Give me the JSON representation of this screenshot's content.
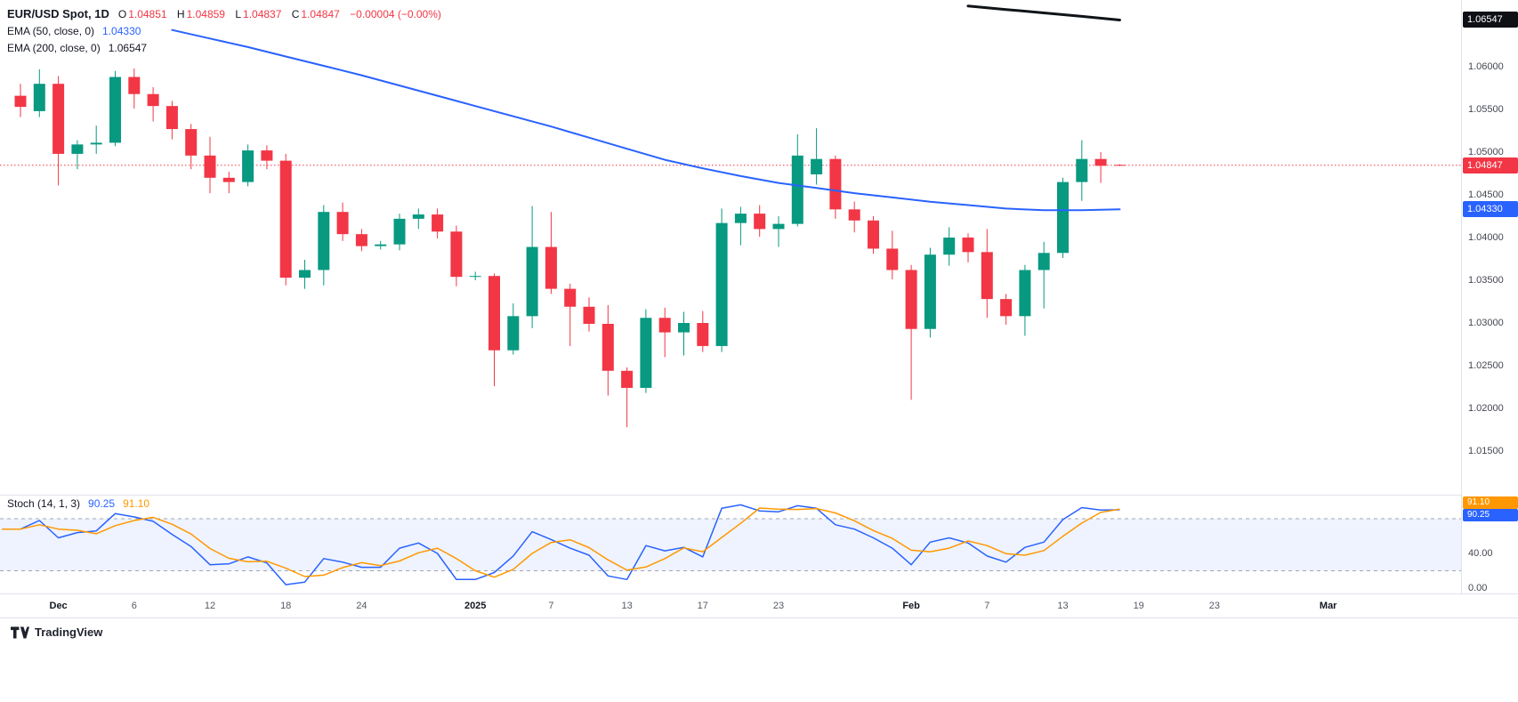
{
  "legend": {
    "title": "EUR/USD Spot, 1D",
    "ohlc": {
      "o_label": "O",
      "o_value": "1.04851",
      "h_label": "H",
      "h_value": "1.04859",
      "l_label": "L",
      "l_value": "1.04837",
      "c_label": "C",
      "c_value": "1.04847",
      "change": "−0.00004 (−0.00%)"
    },
    "ema50_label": "EMA (50, close, 0)",
    "ema50_value": "1.04330",
    "ema200_label": "EMA (200, close, 0)",
    "ema200_value": "1.06547"
  },
  "stoch_legend": {
    "label": "Stoch (14, 1, 3)",
    "k_value": "90.25",
    "d_value": "91.10"
  },
  "footer": {
    "brand": "TradingView"
  },
  "colors": {
    "up": "#089981",
    "down": "#f23645",
    "ema50": "#2962ff",
    "ema200": "#101418",
    "price_line": "#f23645",
    "stoch_k": "#2962ff",
    "stoch_d": "#ff9800",
    "band_fill": "rgba(41,98,255,0.08)",
    "band_line": "#787b86"
  },
  "price_axis": {
    "ticks": [
      {
        "text": "1.06000",
        "p": 1.06
      },
      {
        "text": "1.05500",
        "p": 1.055
      },
      {
        "text": "1.05000",
        "p": 1.05
      },
      {
        "text": "1.04500",
        "p": 1.045
      },
      {
        "text": "1.04000",
        "p": 1.04
      },
      {
        "text": "1.03500",
        "p": 1.035
      },
      {
        "text": "1.03000",
        "p": 1.03
      },
      {
        "text": "1.02500",
        "p": 1.025
      },
      {
        "text": "1.02000",
        "p": 1.02
      },
      {
        "text": "1.01500",
        "p": 1.015
      }
    ],
    "badges": [
      {
        "text": "1.06547",
        "p": 1.06547,
        "bg": "#0f1016"
      },
      {
        "text": "1.04847",
        "p": 1.04847,
        "bg": "#f23645"
      },
      {
        "text": "1.04330",
        "p": 1.0433,
        "bg": "#2962ff"
      }
    ]
  },
  "stoch_axis": {
    "ticks": [
      {
        "text": "80.00",
        "v": 80
      },
      {
        "text": "40.00",
        "v": 40
      },
      {
        "text": "0.00",
        "v": 0
      }
    ],
    "badges": [
      {
        "text": "91.10",
        "bg": "#ff9800"
      },
      {
        "text": "90.25",
        "bg": "#2962ff"
      }
    ]
  },
  "chart_data": {
    "type": "candlestick",
    "symbol": "EUR/USD Spot",
    "timeframe": "1D",
    "title": "EUR/USD Spot, 1D with EMA(50), EMA(200) and Stoch(14,1,3)",
    "ylim": [
      1.0125,
      1.0665
    ],
    "price_line": 1.04847,
    "current_ohlc": {
      "o": 1.04851,
      "h": 1.04859,
      "l": 1.04837,
      "c": 1.04847,
      "change": -4e-05,
      "change_pct": "-0.00%"
    },
    "ema50_last": 1.0433,
    "ema200_last": 1.06547,
    "candles": [
      [
        1.0566,
        1.058,
        1.0541,
        1.0553
      ],
      [
        1.0548,
        1.0597,
        1.0541,
        1.058
      ],
      [
        1.058,
        1.0589,
        1.0461,
        1.0498
      ],
      [
        1.0498,
        1.0514,
        1.048,
        1.0509
      ],
      [
        1.0509,
        1.0531,
        1.0498,
        1.0511
      ],
      [
        1.0511,
        1.0595,
        1.0507,
        1.0588
      ],
      [
        1.0588,
        1.0598,
        1.0551,
        1.0568
      ],
      [
        1.0568,
        1.0576,
        1.0536,
        1.0554
      ],
      [
        1.0554,
        1.056,
        1.0515,
        1.0527
      ],
      [
        1.0527,
        1.0533,
        1.048,
        1.0496
      ],
      [
        1.0496,
        1.0518,
        1.0452,
        1.047
      ],
      [
        1.047,
        1.0477,
        1.0452,
        1.0465
      ],
      [
        1.0465,
        1.0509,
        1.046,
        1.0502
      ],
      [
        1.0502,
        1.0508,
        1.048,
        1.049
      ],
      [
        1.049,
        1.0498,
        1.0344,
        1.0353
      ],
      [
        1.0353,
        1.0374,
        1.034,
        1.0362
      ],
      [
        1.0362,
        1.0438,
        1.0344,
        1.043
      ],
      [
        1.043,
        1.0441,
        1.0396,
        1.0404
      ],
      [
        1.0404,
        1.041,
        1.0384,
        1.039
      ],
      [
        1.039,
        1.0396,
        1.0386,
        1.0392
      ],
      [
        1.0392,
        1.0428,
        1.0385,
        1.0422
      ],
      [
        1.0422,
        1.0434,
        1.041,
        1.0427
      ],
      [
        1.0427,
        1.0434,
        1.0399,
        1.0407
      ],
      [
        1.0407,
        1.0414,
        1.0343,
        1.0354
      ],
      [
        1.0354,
        1.036,
        1.035,
        1.0355
      ],
      [
        1.0355,
        1.0358,
        1.0226,
        1.0268
      ],
      [
        1.0268,
        1.0323,
        1.0263,
        1.0308
      ],
      [
        1.0308,
        1.0437,
        1.0294,
        1.0389
      ],
      [
        1.0389,
        1.043,
        1.0334,
        1.034
      ],
      [
        1.034,
        1.0346,
        1.0273,
        1.0319
      ],
      [
        1.0319,
        1.033,
        1.029,
        1.0299
      ],
      [
        1.0299,
        1.0321,
        1.0215,
        1.0244
      ],
      [
        1.0244,
        1.0248,
        1.0178,
        1.0224
      ],
      [
        1.0224,
        1.0316,
        1.0218,
        1.0306
      ],
      [
        1.0306,
        1.0318,
        1.026,
        1.0289
      ],
      [
        1.0289,
        1.0313,
        1.0262,
        1.03
      ],
      [
        1.03,
        1.0314,
        1.0266,
        1.0273
      ],
      [
        1.0273,
        1.0434,
        1.0266,
        1.0417
      ],
      [
        1.0417,
        1.0436,
        1.0391,
        1.0428
      ],
      [
        1.0428,
        1.0438,
        1.0401,
        1.041
      ],
      [
        1.041,
        1.0425,
        1.0389,
        1.0416
      ],
      [
        1.0416,
        1.0521,
        1.0413,
        1.0496
      ],
      [
        1.0474,
        1.0528,
        1.0462,
        1.0492
      ],
      [
        1.0492,
        1.0496,
        1.0422,
        1.0433
      ],
      [
        1.0433,
        1.0442,
        1.0406,
        1.042
      ],
      [
        1.042,
        1.0425,
        1.0381,
        1.0387
      ],
      [
        1.0387,
        1.0408,
        1.0351,
        1.0362
      ],
      [
        1.0362,
        1.0368,
        1.021,
        1.0293
      ],
      [
        1.0293,
        1.0388,
        1.0283,
        1.038
      ],
      [
        1.038,
        1.0412,
        1.0367,
        1.04
      ],
      [
        1.04,
        1.0405,
        1.0371,
        1.0383
      ],
      [
        1.0383,
        1.041,
        1.0306,
        1.0328
      ],
      [
        1.0328,
        1.0334,
        1.0298,
        1.0308
      ],
      [
        1.0308,
        1.0368,
        1.0285,
        1.0362
      ],
      [
        1.0362,
        1.0395,
        1.0317,
        1.0382
      ],
      [
        1.0382,
        1.047,
        1.0376,
        1.0465
      ],
      [
        1.0465,
        1.0514,
        1.0443,
        1.0492
      ],
      [
        1.0492,
        1.05,
        1.0464,
        1.0484
      ],
      [
        1.04851,
        1.04859,
        1.04837,
        1.04847
      ]
    ],
    "ema50_points": [
      [
        8,
        1.0643
      ],
      [
        10,
        1.0633
      ],
      [
        12,
        1.0623
      ],
      [
        14,
        1.0612
      ],
      [
        16,
        1.0601
      ],
      [
        18,
        1.059
      ],
      [
        20,
        1.0578
      ],
      [
        22,
        1.0566
      ],
      [
        24,
        1.0554
      ],
      [
        26,
        1.0542
      ],
      [
        28,
        1.053
      ],
      [
        30,
        1.0517
      ],
      [
        32,
        1.0504
      ],
      [
        34,
        1.0491
      ],
      [
        36,
        1.0481
      ],
      [
        38,
        1.0472
      ],
      [
        40,
        1.0464
      ],
      [
        42,
        1.0458
      ],
      [
        44,
        1.0452
      ],
      [
        46,
        1.0447
      ],
      [
        48,
        1.0442
      ],
      [
        50,
        1.0438
      ],
      [
        52,
        1.0434
      ],
      [
        54,
        1.0432
      ],
      [
        56,
        1.0432
      ],
      [
        58,
        1.0433
      ]
    ],
    "ema200_points": [
      [
        50,
        1.0671
      ],
      [
        52,
        1.0667
      ],
      [
        54,
        1.0663
      ],
      [
        56,
        1.0659
      ],
      [
        58,
        1.06547
      ]
    ],
    "stoch": {
      "upper": 80,
      "lower": 20,
      "last_k": 90.25,
      "last_d": 91.1,
      "k": [
        68,
        78,
        58,
        64,
        66,
        86,
        82,
        77,
        62,
        48,
        27,
        28,
        36,
        29,
        4,
        7,
        34,
        30,
        24,
        24,
        46,
        52,
        40,
        10,
        10,
        18,
        37,
        65,
        56,
        46,
        38,
        14,
        10,
        49,
        43,
        47,
        36,
        92,
        96,
        89,
        88,
        95,
        92,
        73,
        68,
        58,
        46,
        27,
        53,
        58,
        52,
        37,
        30,
        47,
        53,
        79,
        92.8,
        90.1,
        90.25
      ]
    },
    "time_ticks": [
      {
        "label": "Dec",
        "i": 2,
        "bold": true
      },
      {
        "label": "6",
        "i": 6
      },
      {
        "label": "12",
        "i": 10
      },
      {
        "label": "18",
        "i": 14
      },
      {
        "label": "24",
        "i": 18
      },
      {
        "label": "2025",
        "i": 24,
        "bold": true
      },
      {
        "label": "7",
        "i": 28
      },
      {
        "label": "13",
        "i": 32
      },
      {
        "label": "17",
        "i": 36
      },
      {
        "label": "23",
        "i": 40
      },
      {
        "label": "Feb",
        "i": 47,
        "bold": true
      },
      {
        "label": "7",
        "i": 51
      },
      {
        "label": "13",
        "i": 55
      },
      {
        "label": "19",
        "i": 59
      },
      {
        "label": "23",
        "i": 63
      },
      {
        "label": "Mar",
        "i": 69,
        "bold": true
      }
    ]
  }
}
